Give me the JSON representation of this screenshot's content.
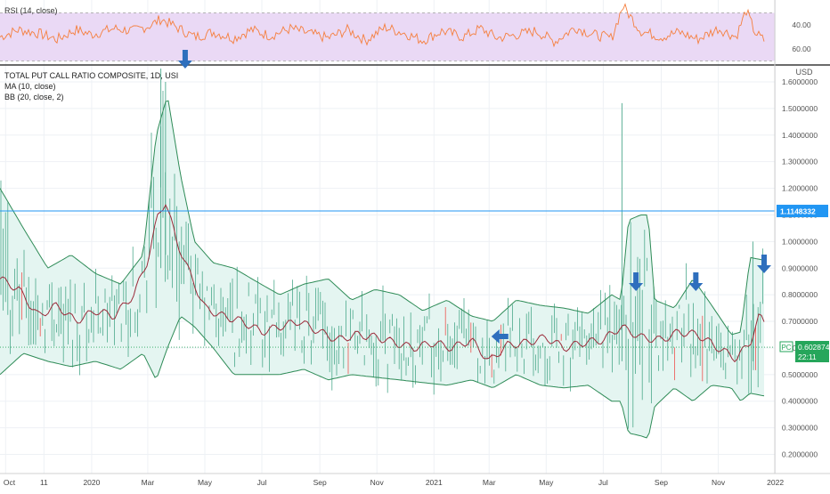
{
  "rsi_pane": {
    "legend": "RSI (14, close)",
    "ticks": [
      "60.00",
      "40.00"
    ]
  },
  "main_pane": {
    "legend": {
      "title": "TOTAL PUT CALL RATIO COMPOSITE, 1D, USI",
      "ma": "MA (10, close)",
      "bb": "BB (20, close, 2)"
    },
    "currency": "USD",
    "price_label": {
      "symbol": "PC",
      "value": "0.6028740",
      "countdown": "22:11"
    },
    "hline_label": "1.1148332"
  },
  "x_axis": {
    "labels": [
      "Oct",
      "11",
      "2020",
      "Mar",
      "May",
      "Jul",
      "Sep",
      "Nov",
      "2021",
      "Mar",
      "May",
      "Jul",
      "Sep",
      "Nov",
      "2022"
    ]
  },
  "colors": {
    "rsi_line": "#f57f3e",
    "rsi_band": "#ead9f5",
    "bars": "#4ca98c",
    "bars_red": "#ef5350",
    "bb_line": "#2e8b57",
    "bb_fill": "#e4f5f1",
    "ma_line": "#9b2b3a",
    "hline": "#2196f3",
    "arrow": "#2e6fbd",
    "price_badge": "#26a65b",
    "hline_badge": "#2196f3"
  },
  "chart_data": [
    {
      "type": "line",
      "title": "RSI (14, close)",
      "ylim": [
        30,
        80
      ],
      "yticks": [
        40,
        60
      ],
      "band": [
        30,
        70
      ],
      "series": [
        {
          "name": "RSI (14, close)",
          "x": [
            "2019-09-25",
            "2019-10-15",
            "2019-11-05",
            "2019-11-25",
            "2019-12-15",
            "2020-01-01",
            "2020-01-25",
            "2020-02-15",
            "2020-03-05",
            "2020-03-15",
            "2020-04-01",
            "2020-04-20",
            "2020-05-10",
            "2020-06-01",
            "2020-06-20",
            "2020-07-10",
            "2020-08-01",
            "2020-08-20",
            "2020-09-10",
            "2020-10-01",
            "2020-10-20",
            "2020-11-10",
            "2020-12-01",
            "2020-12-20",
            "2021-01-10",
            "2021-02-01",
            "2021-02-20",
            "2021-03-10",
            "2021-04-01",
            "2021-04-20",
            "2021-05-10",
            "2021-06-01",
            "2021-06-20",
            "2021-07-10",
            "2021-07-22",
            "2021-08-10",
            "2021-09-01",
            "2021-09-20",
            "2021-10-10",
            "2021-11-01",
            "2021-11-20",
            "2021-12-01",
            "2021-12-10",
            "2021-12-20"
          ],
          "values": [
            50,
            56,
            53,
            48,
            56,
            52,
            57,
            55,
            60,
            65,
            58,
            50,
            54,
            49,
            56,
            51,
            57,
            53,
            49,
            56,
            47,
            58,
            53,
            47,
            55,
            50,
            57,
            49,
            52,
            55,
            46,
            58,
            52,
            49,
            76,
            55,
            50,
            54,
            48,
            57,
            50,
            72,
            54,
            47
          ]
        }
      ]
    },
    {
      "type": "line",
      "title": "TOTAL PUT CALL RATIO COMPOSITE, 1D, USI",
      "ylabel": "USD",
      "ylim": [
        0.17,
        1.65
      ],
      "yticks": [
        "0.2000000",
        "0.3000000",
        "0.4000000",
        "0.5000000",
        "0.6000000",
        "0.7000000",
        "0.8000000",
        "0.9000000",
        "1.0000000",
        "1.1000000",
        "1.2000000",
        "1.3000000",
        "1.4000000",
        "1.5000000",
        "1.6000000"
      ],
      "grid": true,
      "horizontal_line": 1.1148332,
      "last_value": 0.602874,
      "series": [
        {
          "name": "MA (10, close)",
          "x": [
            "2019-09-25",
            "2019-10-15",
            "2019-11-05",
            "2019-11-25",
            "2019-12-15",
            "2020-01-05",
            "2020-01-25",
            "2020-02-15",
            "2020-03-01",
            "2020-03-12",
            "2020-03-20",
            "2020-04-01",
            "2020-04-15",
            "2020-05-01",
            "2020-05-20",
            "2020-06-10",
            "2020-07-01",
            "2020-07-20",
            "2020-08-10",
            "2020-09-01",
            "2020-09-20",
            "2020-10-10",
            "2020-11-01",
            "2020-11-20",
            "2020-12-10",
            "2021-01-01",
            "2021-01-20",
            "2021-02-10",
            "2021-03-01",
            "2021-03-20",
            "2021-04-10",
            "2021-05-01",
            "2021-05-20",
            "2021-06-10",
            "2021-07-01",
            "2021-07-20",
            "2021-08-10",
            "2021-09-01",
            "2021-09-20",
            "2021-10-10",
            "2021-11-01",
            "2021-11-20",
            "2021-12-05",
            "2021-12-15",
            "2021-12-20"
          ],
          "values": [
            0.86,
            0.82,
            0.72,
            0.76,
            0.7,
            0.74,
            0.72,
            0.8,
            0.93,
            1.1,
            1.15,
            1.0,
            0.88,
            0.75,
            0.72,
            0.7,
            0.66,
            0.68,
            0.7,
            0.66,
            0.63,
            0.65,
            0.64,
            0.62,
            0.6,
            0.62,
            0.6,
            0.63,
            0.55,
            0.61,
            0.62,
            0.64,
            0.6,
            0.62,
            0.63,
            0.68,
            0.64,
            0.63,
            0.66,
            0.65,
            0.6,
            0.56,
            0.62,
            0.72,
            0.7
          ]
        },
        {
          "name": "BB upper",
          "x": [
            "2019-09-25",
            "2019-10-20",
            "2019-11-15",
            "2019-12-10",
            "2020-01-05",
            "2020-02-01",
            "2020-02-25",
            "2020-03-10",
            "2020-03-22",
            "2020-04-05",
            "2020-04-20",
            "2020-05-10",
            "2020-06-01",
            "2020-06-25",
            "2020-07-20",
            "2020-08-15",
            "2020-09-10",
            "2020-10-05",
            "2020-10-30",
            "2020-11-25",
            "2020-12-20",
            "2021-01-15",
            "2021-02-10",
            "2021-03-05",
            "2021-03-30",
            "2021-04-25",
            "2021-05-20",
            "2021-06-15",
            "2021-07-10",
            "2021-07-20",
            "2021-07-28",
            "2021-08-10",
            "2021-08-18",
            "2021-08-25",
            "2021-09-15",
            "2021-10-05",
            "2021-10-25",
            "2021-11-15",
            "2021-11-25",
            "2021-12-05",
            "2021-12-20"
          ],
          "values": [
            1.2,
            1.05,
            0.9,
            0.95,
            0.88,
            0.84,
            0.95,
            1.4,
            1.55,
            1.25,
            1.0,
            0.92,
            0.9,
            0.85,
            0.8,
            0.84,
            0.86,
            0.78,
            0.82,
            0.8,
            0.74,
            0.78,
            0.72,
            0.7,
            0.78,
            0.76,
            0.75,
            0.73,
            0.8,
            0.78,
            1.08,
            1.1,
            1.1,
            0.78,
            0.75,
            0.86,
            0.76,
            0.65,
            0.66,
            0.94,
            0.93
          ]
        },
        {
          "name": "BB lower",
          "x": [
            "2019-09-25",
            "2019-10-20",
            "2019-11-15",
            "2019-12-10",
            "2020-01-05",
            "2020-02-01",
            "2020-02-25",
            "2020-03-10",
            "2020-03-22",
            "2020-04-05",
            "2020-04-20",
            "2020-05-10",
            "2020-06-01",
            "2020-06-25",
            "2020-07-20",
            "2020-08-15",
            "2020-09-10",
            "2020-10-05",
            "2020-10-30",
            "2020-11-25",
            "2020-12-20",
            "2021-01-15",
            "2021-02-10",
            "2021-03-05",
            "2021-03-30",
            "2021-04-25",
            "2021-05-20",
            "2021-06-15",
            "2021-07-10",
            "2021-07-20",
            "2021-07-28",
            "2021-08-10",
            "2021-08-18",
            "2021-08-25",
            "2021-09-15",
            "2021-10-05",
            "2021-10-25",
            "2021-11-15",
            "2021-11-25",
            "2021-12-05",
            "2021-12-20"
          ],
          "values": [
            0.5,
            0.58,
            0.55,
            0.53,
            0.55,
            0.52,
            0.58,
            0.48,
            0.6,
            0.72,
            0.68,
            0.6,
            0.5,
            0.5,
            0.5,
            0.52,
            0.48,
            0.5,
            0.49,
            0.48,
            0.47,
            0.46,
            0.48,
            0.45,
            0.5,
            0.46,
            0.45,
            0.46,
            0.4,
            0.4,
            0.28,
            0.27,
            0.26,
            0.38,
            0.45,
            0.4,
            0.46,
            0.45,
            0.4,
            0.43,
            0.42
          ]
        }
      ],
      "annotations": [
        "down arrow 2020-04",
        "left arrow 2021-03",
        "down arrow 2021-08",
        "down arrow 2021-10",
        "down arrow 2021-12"
      ]
    }
  ]
}
